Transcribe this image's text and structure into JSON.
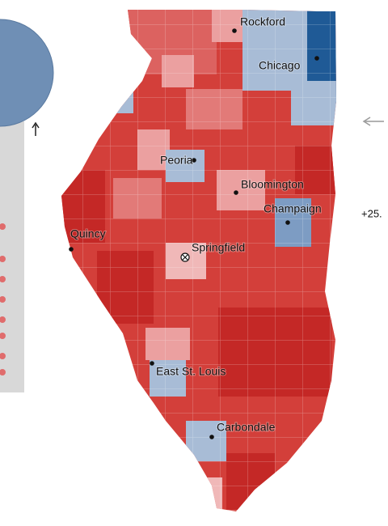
{
  "cities": [
    {
      "label": "Rockford"
    },
    {
      "label": "Chicago"
    },
    {
      "label": "Peoria"
    },
    {
      "label": "Bloomington"
    },
    {
      "label": "Champaign"
    },
    {
      "label": "Quincy"
    },
    {
      "label": "Springfield"
    },
    {
      "label": "East St. Louis"
    },
    {
      "label": "Carbondale"
    }
  ],
  "side_label": "+25."
}
